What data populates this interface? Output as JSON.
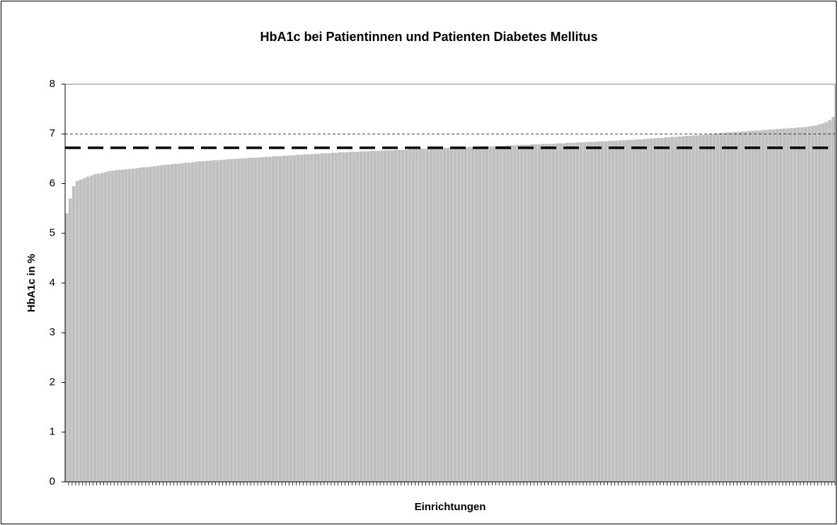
{
  "chart_data": {
    "type": "bar",
    "title": "HbA1c bei Patientinnen und Patienten Diabetes Mellitus",
    "xlabel": "Einrichtungen",
    "ylabel": "HbA1c in %",
    "color": "#c0c0c0",
    "ylim": [
      0,
      8
    ],
    "yticks": [
      0,
      1,
      2,
      3,
      4,
      5,
      6,
      7,
      8
    ],
    "grid": false,
    "reference_lines": [
      {
        "value": 6.72,
        "style": "thick-dashed"
      },
      {
        "value": 7,
        "style": "thin-dashed"
      }
    ],
    "values": [
      5.4,
      5.7,
      5.95,
      6.05,
      6.08,
      6.11,
      6.14,
      6.16,
      6.19,
      6.2,
      6.21,
      6.23,
      6.25,
      6.26,
      6.27,
      6.28,
      6.28,
      6.29,
      6.3,
      6.3,
      6.31,
      6.32,
      6.33,
      6.33,
      6.34,
      6.35,
      6.36,
      6.37,
      6.38,
      6.38,
      6.39,
      6.4,
      6.4,
      6.41,
      6.42,
      6.42,
      6.43,
      6.44,
      6.45,
      6.45,
      6.46,
      6.46,
      6.47,
      6.47,
      6.48,
      6.48,
      6.49,
      6.49,
      6.5,
      6.5,
      6.51,
      6.51,
      6.52,
      6.52,
      6.52,
      6.53,
      6.53,
      6.54,
      6.54,
      6.55,
      6.55,
      6.55,
      6.56,
      6.56,
      6.57,
      6.57,
      6.58,
      6.58,
      6.59,
      6.59,
      6.59,
      6.6,
      6.6,
      6.61,
      6.61,
      6.61,
      6.62,
      6.62,
      6.63,
      6.63,
      6.63,
      6.64,
      6.64,
      6.64,
      6.65,
      6.65,
      6.65,
      6.66,
      6.66,
      6.66,
      6.67,
      6.67,
      6.67,
      6.67,
      6.68,
      6.68,
      6.68,
      6.68,
      6.69,
      6.69,
      6.69,
      6.7,
      6.7,
      6.7,
      6.7,
      6.71,
      6.71,
      6.71,
      6.72,
      6.72,
      6.72,
      6.72,
      6.73,
      6.73,
      6.73,
      6.74,
      6.74,
      6.74,
      6.74,
      6.75,
      6.75,
      6.75,
      6.75,
      6.76,
      6.76,
      6.76,
      6.77,
      6.77,
      6.77,
      6.78,
      6.78,
      6.78,
      6.78,
      6.79,
      6.79,
      6.79,
      6.8,
      6.8,
      6.8,
      6.8,
      6.81,
      6.81,
      6.81,
      6.82,
      6.82,
      6.82,
      6.83,
      6.83,
      6.83,
      6.84,
      6.84,
      6.84,
      6.85,
      6.85,
      6.85,
      6.86,
      6.86,
      6.86,
      6.87,
      6.87,
      6.88,
      6.88,
      6.88,
      6.89,
      6.89,
      6.9,
      6.9,
      6.91,
      6.91,
      6.92,
      6.92,
      6.93,
      6.93,
      6.94,
      6.94,
      6.95,
      6.95,
      6.96,
      6.96,
      6.97,
      6.97,
      6.98,
      6.98,
      6.99,
      7.0,
      7.0,
      7.01,
      7.02,
      7.02,
      7.03,
      7.03,
      7.04,
      7.04,
      7.05,
      7.05,
      7.06,
      7.06,
      7.07,
      7.07,
      7.08,
      7.08,
      7.09,
      7.09,
      7.1,
      7.1,
      7.11,
      7.11,
      7.12,
      7.12,
      7.13,
      7.13,
      7.14,
      7.15,
      7.16,
      7.17,
      7.19,
      7.21,
      7.24,
      7.28,
      7.34
    ]
  }
}
